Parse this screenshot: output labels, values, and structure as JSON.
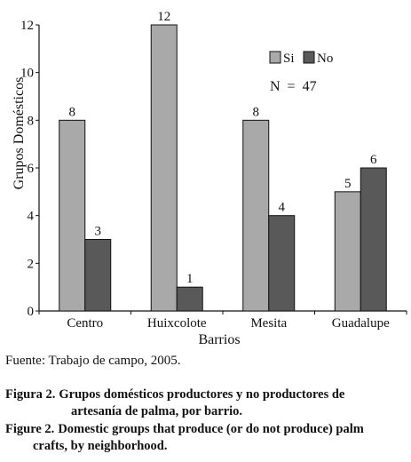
{
  "chart_data": {
    "type": "bar",
    "categories": [
      "Centro",
      "Huixcolote",
      "Mesita",
      "Guadalupe"
    ],
    "series": [
      {
        "name": "Si",
        "values": [
          8,
          12,
          8,
          5
        ],
        "color": "#a9a9a9"
      },
      {
        "name": "No",
        "values": [
          3,
          1,
          4,
          6
        ],
        "color": "#595959"
      }
    ],
    "data_labels": [
      [
        "8",
        "3"
      ],
      [
        "12",
        "1"
      ],
      [
        "8",
        "4"
      ],
      [
        "5",
        "6"
      ]
    ],
    "xlabel": "Barrios",
    "ylabel": "Grupos Domésticos",
    "ylim": [
      0,
      12
    ],
    "yticks": [
      "0",
      "2",
      "4",
      "6",
      "8",
      "10",
      "12"
    ],
    "annotation": "N  =  47",
    "legend": "top-right",
    "grid": false
  },
  "source": "Fuente: Trabajo de campo, 2005.",
  "caption_es": {
    "label": "Figura 2.",
    "line1": "Grupos domésticos productores y no productores de",
    "line2": "artesanía de palma, por barrio."
  },
  "caption_en": {
    "label": "Figure 2.",
    "line1": "Domestic groups that produce (or do not produce) palm",
    "line2": "crafts, by neighborhood."
  }
}
